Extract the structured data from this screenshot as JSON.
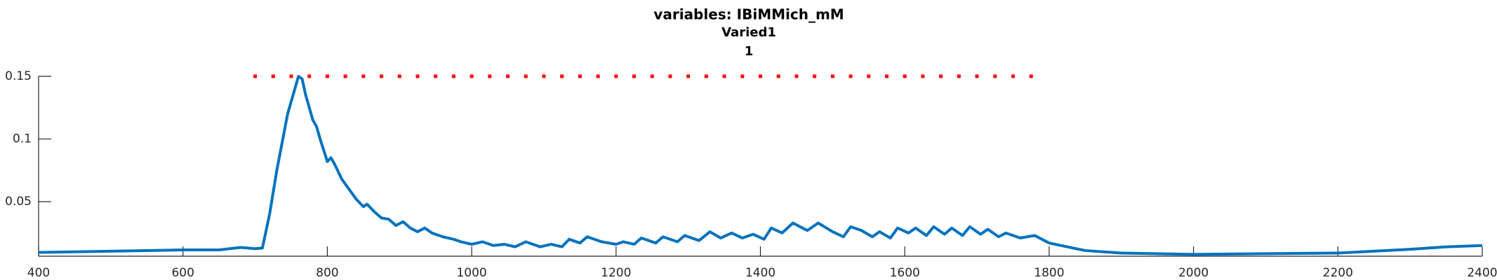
{
  "chart_data": {
    "type": "line",
    "title": "variables: IBiMMich_mM",
    "subtitle": "Varied1",
    "subtitle2": "1",
    "xlim": [
      400,
      2400
    ],
    "xticks": [
      400,
      600,
      800,
      1000,
      1200,
      1400,
      1600,
      1800,
      2000,
      2200,
      2400
    ],
    "ylim": [
      0.0065,
      0.15
    ],
    "yticks": [
      0.05,
      0.1,
      0.15
    ],
    "series": [
      {
        "color": "#0072bd",
        "style": "line",
        "x": [
          400,
          500,
          600,
          650,
          680,
          700,
          710,
          720,
          730,
          740,
          745,
          750,
          755,
          760,
          765,
          770,
          775,
          780,
          785,
          790,
          800,
          805,
          810,
          820,
          830,
          840,
          850,
          855,
          865,
          875,
          885,
          895,
          905,
          915,
          925,
          935,
          945,
          960,
          975,
          985,
          1000,
          1015,
          1030,
          1045,
          1060,
          1075,
          1095,
          1110,
          1125,
          1135,
          1150,
          1160,
          1180,
          1200,
          1210,
          1225,
          1235,
          1255,
          1265,
          1285,
          1295,
          1315,
          1330,
          1345,
          1360,
          1375,
          1390,
          1405,
          1415,
          1430,
          1445,
          1465,
          1480,
          1500,
          1515,
          1525,
          1540,
          1555,
          1565,
          1580,
          1590,
          1605,
          1615,
          1630,
          1640,
          1655,
          1665,
          1680,
          1690,
          1705,
          1715,
          1730,
          1740,
          1760,
          1780,
          1800,
          1850,
          1900,
          2000,
          2100,
          2200,
          2300,
          2350,
          2400
        ],
        "values": [
          0.0095,
          0.0105,
          0.0115,
          0.0115,
          0.0135,
          0.0125,
          0.013,
          0.04,
          0.075,
          0.105,
          0.12,
          0.13,
          0.14,
          0.15,
          0.148,
          0.135,
          0.125,
          0.115,
          0.11,
          0.1,
          0.082,
          0.085,
          0.08,
          0.068,
          0.06,
          0.052,
          0.046,
          0.048,
          0.042,
          0.037,
          0.036,
          0.031,
          0.034,
          0.029,
          0.026,
          0.029,
          0.025,
          0.022,
          0.02,
          0.018,
          0.016,
          0.018,
          0.015,
          0.016,
          0.014,
          0.018,
          0.014,
          0.016,
          0.014,
          0.02,
          0.017,
          0.022,
          0.018,
          0.016,
          0.018,
          0.016,
          0.021,
          0.017,
          0.022,
          0.018,
          0.023,
          0.019,
          0.026,
          0.021,
          0.025,
          0.021,
          0.024,
          0.02,
          0.029,
          0.025,
          0.033,
          0.027,
          0.033,
          0.026,
          0.022,
          0.03,
          0.027,
          0.022,
          0.026,
          0.021,
          0.029,
          0.025,
          0.029,
          0.023,
          0.03,
          0.024,
          0.029,
          0.023,
          0.03,
          0.024,
          0.028,
          0.022,
          0.025,
          0.021,
          0.023,
          0.017,
          0.011,
          0.009,
          0.008,
          0.0085,
          0.009,
          0.012,
          0.014,
          0.015
        ]
      },
      {
        "color": "#ff0000",
        "style": "markers",
        "x": [
          700,
          725,
          750,
          775,
          800,
          825,
          850,
          875,
          900,
          925,
          950,
          975,
          1000,
          1025,
          1050,
          1075,
          1100,
          1125,
          1150,
          1175,
          1200,
          1225,
          1250,
          1275,
          1300,
          1325,
          1350,
          1375,
          1400,
          1425,
          1450,
          1475,
          1500,
          1525,
          1550,
          1575,
          1600,
          1625,
          1650,
          1675,
          1700,
          1725,
          1750,
          1775
        ],
        "values": [
          0.15,
          0.15,
          0.15,
          0.15,
          0.15,
          0.15,
          0.15,
          0.15,
          0.15,
          0.15,
          0.15,
          0.15,
          0.15,
          0.15,
          0.15,
          0.15,
          0.15,
          0.15,
          0.15,
          0.15,
          0.15,
          0.15,
          0.15,
          0.15,
          0.15,
          0.15,
          0.15,
          0.15,
          0.15,
          0.15,
          0.15,
          0.15,
          0.15,
          0.15,
          0.15,
          0.15,
          0.15,
          0.15,
          0.15,
          0.15,
          0.15,
          0.15,
          0.15,
          0.15
        ]
      }
    ]
  }
}
